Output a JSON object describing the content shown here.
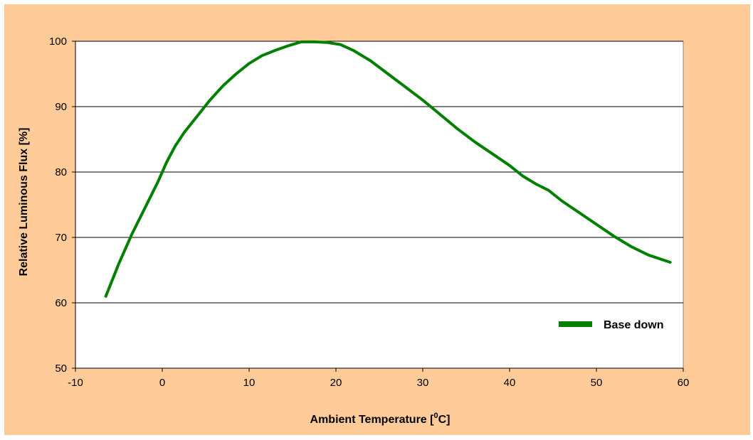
{
  "colors": {
    "background": "#FFCC99",
    "plot_area": "#FFFFFF",
    "series_line": "#008000",
    "gridline": "#000000"
  },
  "chart_data": {
    "type": "line",
    "title": "",
    "xlabel_text": "Ambient Temperature [",
    "xlabel_sup": "0",
    "xlabel_after": "C]",
    "ylabel": "Relative Luminous Flux [%]",
    "xlim": [
      -10,
      60
    ],
    "ylim": [
      50,
      100
    ],
    "xticks": [
      -10,
      0,
      10,
      20,
      30,
      40,
      50,
      60
    ],
    "yticks": [
      50,
      60,
      70,
      80,
      90,
      100
    ],
    "grid": "horizontal",
    "legend_position": "right",
    "series": [
      {
        "name": "Base down",
        "color": "#008000",
        "x": [
          -6.5,
          -5,
          -3.5,
          -2,
          -0.5,
          0.5,
          1.5,
          2.5,
          4,
          5.5,
          7,
          8.5,
          10,
          11.5,
          13,
          14.5,
          16,
          17.5,
          19,
          20.5,
          22,
          24,
          26,
          28,
          30,
          32,
          34,
          36,
          38,
          40,
          41.5,
          43,
          44.5,
          46,
          48,
          50,
          52,
          54,
          56,
          58.5
        ],
        "y": [
          61,
          66,
          70.5,
          74.5,
          78.5,
          81.5,
          84,
          86,
          88.5,
          91,
          93.2,
          95,
          96.6,
          97.8,
          98.6,
          99.3,
          99.9,
          99.9,
          99.8,
          99.5,
          98.6,
          97,
          95,
          93,
          91,
          88.8,
          86.6,
          84.6,
          82.8,
          81,
          79.4,
          78.2,
          77.2,
          75.6,
          73.8,
          72,
          70.2,
          68.6,
          67.3,
          66.2
        ]
      }
    ]
  }
}
